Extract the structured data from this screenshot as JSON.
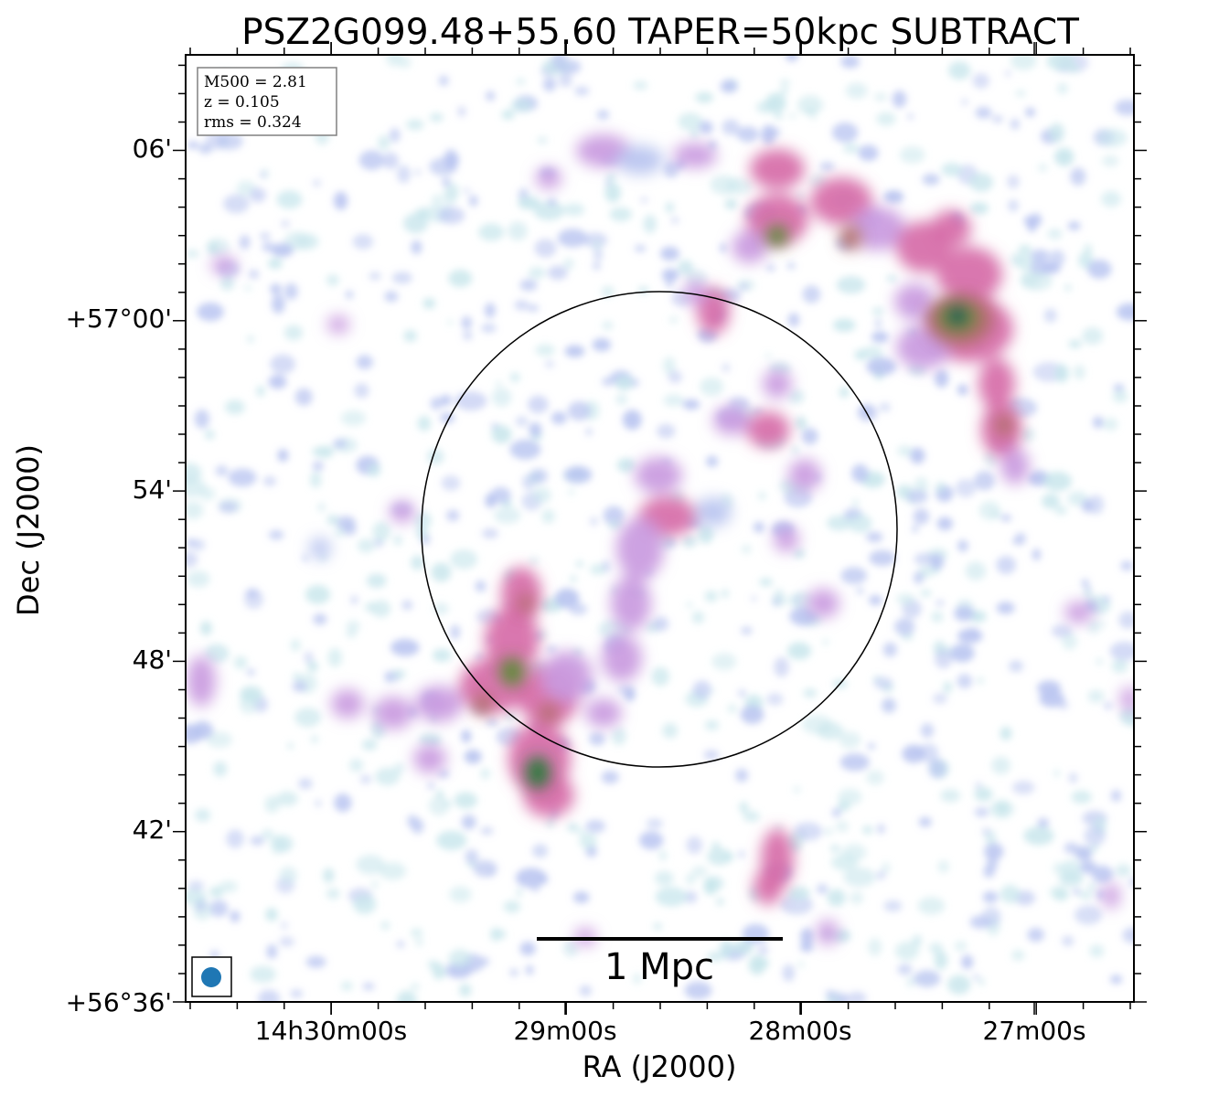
{
  "chart_data": {
    "type": "heatmap",
    "title": "PSZ2G099.48+55.60 TAPER=50kpc SUBTRACT",
    "xlabel": "RA (J2000)",
    "ylabel": "Dec (J2000)",
    "x_ticks": [
      "14h30m00s",
      "29m00s",
      "28m00s",
      "27m00s"
    ],
    "y_ticks": [
      "+56°36'",
      "42'",
      "48'",
      "+57°00'",
      "54'",
      "06'"
    ],
    "colormap": [
      "#ffffff",
      "#c8e6ec",
      "#b8c4f0",
      "#c99ae0",
      "#d66ba8",
      "#b06e6a",
      "#5e8a3a",
      "#2d7a3c",
      "#1a5a5a"
    ],
    "info_box": [
      "M500 = 2.81",
      "z = 0.105",
      "rms = 0.324"
    ],
    "scale_bar_label": "1 Mpc",
    "beam_color": "#1f77b4",
    "circle_color": "#000000"
  }
}
